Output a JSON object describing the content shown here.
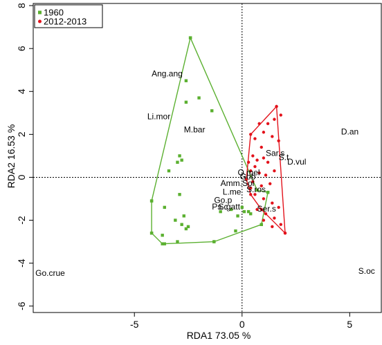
{
  "chart_data": {
    "type": "scatter",
    "title": "",
    "xlabel": "RDA1 73.05 %",
    "ylabel": "RDA2 16.53 %",
    "xlim": [
      -9.7,
      6.5
    ],
    "ylim": [
      -6.3,
      8.1
    ],
    "x_ticks": [
      -5,
      0,
      5
    ],
    "y_ticks": [
      -6,
      -4,
      -2,
      0,
      2,
      4,
      6,
      8
    ],
    "legend": {
      "placement": "top-left",
      "entries": [
        {
          "label": "1960",
          "color": "#5bb030",
          "marker": "square"
        },
        {
          "label": "2012-2013",
          "color": "#e3121b",
          "marker": "circle"
        }
      ]
    },
    "reference_lines": {
      "x": 0,
      "y": 0,
      "style": "dotted"
    },
    "series": [
      {
        "name": "1960",
        "color": "#5bb030",
        "marker": "square",
        "points": [
          [
            -2.4,
            6.5
          ],
          [
            -2.6,
            4.5
          ],
          [
            -2.0,
            3.7
          ],
          [
            -2.6,
            3.5
          ],
          [
            -1.4,
            3.1
          ],
          [
            -2.9,
            1.0
          ],
          [
            -3.0,
            0.7
          ],
          [
            -2.8,
            0.8
          ],
          [
            -3.4,
            0.3
          ],
          [
            -4.2,
            -1.1
          ],
          [
            -2.9,
            -0.8
          ],
          [
            -3.6,
            -1.4
          ],
          [
            -2.7,
            -1.8
          ],
          [
            -2.5,
            -2.3
          ],
          [
            -2.8,
            -2.2
          ],
          [
            -2.6,
            -2.4
          ],
          [
            -3.1,
            -2.0
          ],
          [
            -3.0,
            -3.0
          ],
          [
            -3.7,
            -2.7
          ],
          [
            -4.2,
            -2.6
          ],
          [
            -3.6,
            -3.1
          ],
          [
            -1.3,
            -3.0
          ],
          [
            -0.3,
            -2.5
          ],
          [
            0.3,
            -1.6
          ],
          [
            0.4,
            -1.7
          ],
          [
            0.9,
            -2.2
          ],
          [
            1.2,
            -0.7
          ],
          [
            0.1,
            -1.6
          ],
          [
            -0.5,
            -1.5
          ],
          [
            -1.0,
            -1.6
          ],
          [
            -0.2,
            -1.8
          ],
          [
            0.0,
            -1.4
          ]
        ],
        "hull": [
          [
            -2.4,
            6.5
          ],
          [
            0.7,
            -0.6
          ],
          [
            1.2,
            -0.7
          ],
          [
            0.9,
            -2.2
          ],
          [
            -1.3,
            -3.0
          ],
          [
            -3.7,
            -3.1
          ],
          [
            -4.2,
            -2.6
          ],
          [
            -4.2,
            -1.1
          ]
        ]
      },
      {
        "name": "2012-2013",
        "color": "#e3121b",
        "marker": "circle",
        "points": [
          [
            1.6,
            3.3
          ],
          [
            1.5,
            2.7
          ],
          [
            1.8,
            2.9
          ],
          [
            0.8,
            2.5
          ],
          [
            1.0,
            2.1
          ],
          [
            1.2,
            2.5
          ],
          [
            0.6,
            1.8
          ],
          [
            1.4,
            1.9
          ],
          [
            1.7,
            1.7
          ],
          [
            0.9,
            1.4
          ],
          [
            0.5,
            1.0
          ],
          [
            0.7,
            0.8
          ],
          [
            1.0,
            0.9
          ],
          [
            0.3,
            0.7
          ],
          [
            0.6,
            0.5
          ],
          [
            1.2,
            0.7
          ],
          [
            0.4,
            0.3
          ],
          [
            0.8,
            0.2
          ],
          [
            1.1,
            0.1
          ],
          [
            1.5,
            0.3
          ],
          [
            0.5,
            -0.2
          ],
          [
            0.9,
            -0.4
          ],
          [
            1.3,
            -0.3
          ],
          [
            0.6,
            -0.8
          ],
          [
            1.0,
            -1.0
          ],
          [
            1.4,
            -1.2
          ],
          [
            0.7,
            -1.5
          ],
          [
            1.1,
            -1.7
          ],
          [
            1.5,
            -1.9
          ],
          [
            1.8,
            -2.2
          ],
          [
            2.0,
            -2.6
          ],
          [
            1.4,
            -2.3
          ],
          [
            1.0,
            -2.0
          ],
          [
            1.7,
            -1.4
          ],
          [
            0.4,
            -0.5
          ]
        ],
        "hull": [
          [
            1.6,
            3.3
          ],
          [
            2.0,
            -2.6
          ],
          [
            0.9,
            -1.5
          ],
          [
            0.4,
            -0.8
          ],
          [
            0.2,
            -0.1
          ],
          [
            0.4,
            2.0
          ]
        ]
      }
    ],
    "annotations": [
      {
        "text": "Ang.ang",
        "x": -4.2,
        "y": 4.7
      },
      {
        "text": "Li.mor",
        "x": -4.4,
        "y": 2.7
      },
      {
        "text": "M.bar",
        "x": -2.7,
        "y": 2.1
      },
      {
        "text": "D.an",
        "x": 4.6,
        "y": 2.0
      },
      {
        "text": "Sar.s",
        "x": 1.1,
        "y": 1.0
      },
      {
        "text": "S.t",
        "x": 1.7,
        "y": 0.8
      },
      {
        "text": "D.vul",
        "x": 2.1,
        "y": 0.6
      },
      {
        "text": "O.mel",
        "x": -0.2,
        "y": 0.1
      },
      {
        "text": "Gob",
        "x": -0.1,
        "y": -0.1
      },
      {
        "text": "Amm.Sol",
        "x": -1.0,
        "y": -0.4
      },
      {
        "text": "S.ros",
        "x": 0.2,
        "y": -0.7
      },
      {
        "text": "L.me",
        "x": -0.9,
        "y": -0.8
      },
      {
        "text": "Go.p",
        "x": -1.3,
        "y": -1.2
      },
      {
        "text": "Ps.c",
        "x": -1.4,
        "y": -1.5
      },
      {
        "text": "S.gatt",
        "x": -1.1,
        "y": -1.5
      },
      {
        "text": "Ser.s",
        "x": 0.7,
        "y": -1.6
      },
      {
        "text": "Go.crue",
        "x": -9.6,
        "y": -4.6
      },
      {
        "text": "S.oc",
        "x": 5.4,
        "y": -4.5
      }
    ]
  }
}
